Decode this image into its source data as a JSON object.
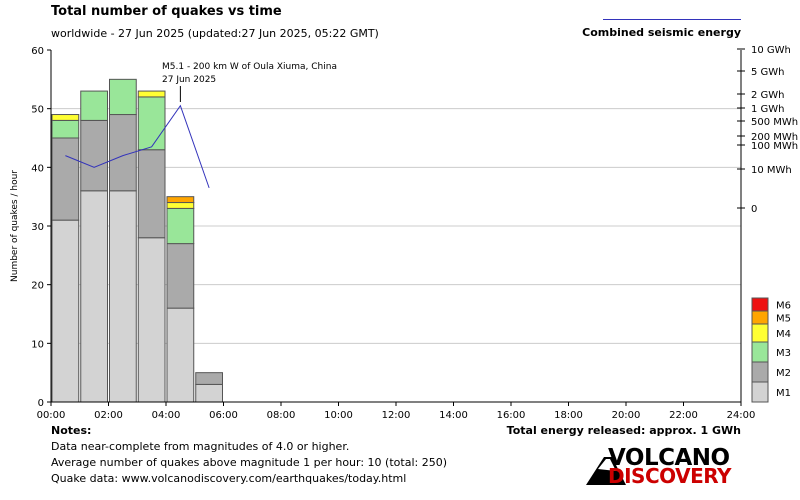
{
  "title": "Total number of quakes vs time",
  "subtitle": "worldwide - 27 Jun 2025 (updated:27 Jun 2025, 05:22 GMT)",
  "legend": {
    "energy_label": "Combined seismic energy",
    "energy_color": "#3333bb"
  },
  "notes": {
    "heading": "Notes:",
    "lines": [
      "Data near-complete from magnitudes of 4.0 or higher.",
      "Average number of quakes above magnitude 1 per hour: 10 (total: 250)",
      "Quake data: www.volcanodiscovery.com/earthquakes/today.html"
    ]
  },
  "total_energy": "Total energy released: approx. 1 GWh",
  "logo": {
    "word1": "VOLCANO",
    "word2": "DISCOVERY"
  },
  "chart_data": {
    "type": "bar",
    "stacked": true,
    "ylabel": "Number of quakes / hour",
    "ylim": [
      0,
      60
    ],
    "yticks": [
      "0",
      "10",
      "20",
      "30",
      "40",
      "50",
      "60"
    ],
    "x_range": [
      0,
      24
    ],
    "xticks": [
      "00:00",
      "02:00",
      "04:00",
      "06:00",
      "08:00",
      "10:00",
      "12:00",
      "14:00",
      "16:00",
      "18:00",
      "20:00",
      "22:00",
      "24:00"
    ],
    "categories": [
      "00:00",
      "01:00",
      "02:00",
      "03:00",
      "04:00",
      "05:00"
    ],
    "series": [
      {
        "name": "M1",
        "color": "#d3d3d3",
        "values": [
          31,
          36,
          36,
          28,
          16,
          3
        ]
      },
      {
        "name": "M2",
        "color": "#aaaaaa",
        "values": [
          14,
          12,
          13,
          15,
          11,
          2
        ]
      },
      {
        "name": "M3",
        "color": "#99e699",
        "values": [
          3,
          5,
          6,
          9,
          6,
          0
        ]
      },
      {
        "name": "M4",
        "color": "#ffff33",
        "values": [
          1,
          0,
          0,
          1,
          1,
          0
        ]
      },
      {
        "name": "M5",
        "color": "#ffa500",
        "values": [
          0,
          0,
          0,
          0,
          1,
          0
        ]
      },
      {
        "name": "M6",
        "color": "#ee1111",
        "values": [
          0,
          0,
          0,
          0,
          0,
          0
        ]
      }
    ],
    "energy_axis_ticks": [
      "10 GWh",
      "5 GWh",
      "2 GWh",
      "1 GWh",
      "500 MWh",
      "200 MWh",
      "100 MWh",
      "10 MWh",
      "0"
    ],
    "energy_line_x": [
      0.5,
      1.5,
      2.5,
      3.5,
      4.5,
      5.5
    ],
    "energy_line_y": [
      42,
      40,
      42,
      43.5,
      50.5,
      36.5
    ],
    "annotation": {
      "line1": "M5.1 - 200 km W of Oula Xiuma, China",
      "line2": "27 Jun 2025",
      "x": 4.5
    }
  }
}
